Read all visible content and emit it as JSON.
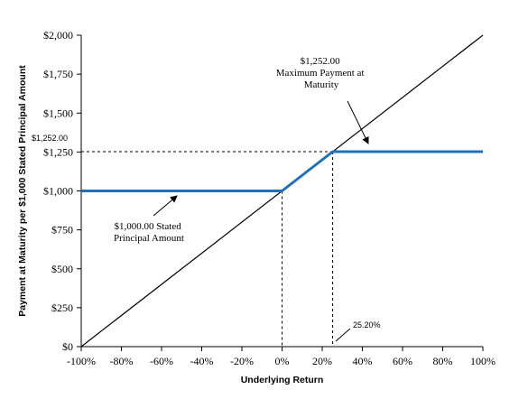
{
  "chart_data": {
    "type": "line",
    "xlabel": "Underlying Return",
    "ylabel": "Payment at Maturity per $1,000 Stated Principal Amount",
    "xlim": [
      -100,
      100
    ],
    "ylim": [
      0,
      2000
    ],
    "x_ticks": [
      -100,
      -80,
      -60,
      -40,
      -20,
      0,
      20,
      40,
      60,
      80,
      100
    ],
    "x_tick_labels": [
      "-100%",
      "-80%",
      "-60%",
      "-40%",
      "-20%",
      "0%",
      "20%",
      "40%",
      "60%",
      "80%",
      "100%"
    ],
    "y_ticks": [
      0,
      250,
      500,
      750,
      1000,
      1250,
      1500,
      1750,
      2000
    ],
    "y_tick_labels": [
      "$0",
      "$250",
      "$500",
      "$750",
      "$1,000",
      "$1,250",
      "$1,500",
      "$1,750",
      "$2,000"
    ],
    "grid": false,
    "series": [
      {
        "style": "thin-black",
        "color": "#000000",
        "points": [
          [
            -100,
            0
          ],
          [
            100,
            2000
          ]
        ]
      },
      {
        "style": "thick-blue",
        "color": "#1f6fbf",
        "points": [
          [
            -100,
            1000
          ],
          [
            0,
            1000
          ],
          [
            25.2,
            1252
          ],
          [
            100,
            1252
          ]
        ]
      }
    ],
    "reference_lines": {
      "horizontal_y": 1252,
      "horizontal_x_range": [
        -100,
        25.2
      ],
      "vertical_x": [
        0,
        25.2
      ]
    },
    "annotations": {
      "max_payment": [
        "$1,252.00",
        "Maximum Payment at",
        "Maturity"
      ],
      "stated_principal": [
        "$1,000.00 Stated",
        "Principal Amount"
      ],
      "y_marker": "$1,252.00",
      "x_marker": "25.20%"
    }
  }
}
